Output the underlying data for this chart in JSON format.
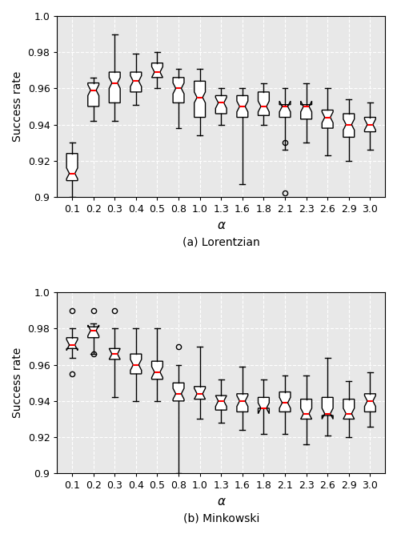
{
  "alpha_labels": [
    "0.1",
    "0.2",
    "0.3",
    "0.4",
    "0.5",
    "0.8",
    "1.0",
    "1.3",
    "1.6",
    "1.8",
    "2.1",
    "2.3",
    "2.6",
    "2.9",
    "3.0"
  ],
  "lorentzian": {
    "whislo": [
      0.9,
      0.942,
      0.942,
      0.951,
      0.96,
      0.938,
      0.934,
      0.94,
      0.907,
      0.94,
      0.926,
      0.93,
      0.923,
      0.92,
      0.926
    ],
    "q1": [
      0.909,
      0.95,
      0.952,
      0.958,
      0.966,
      0.952,
      0.944,
      0.946,
      0.944,
      0.945,
      0.944,
      0.943,
      0.938,
      0.933,
      0.936
    ],
    "med": [
      0.913,
      0.959,
      0.963,
      0.964,
      0.969,
      0.96,
      0.955,
      0.952,
      0.95,
      0.95,
      0.95,
      0.95,
      0.944,
      0.94,
      0.94
    ],
    "q3": [
      0.924,
      0.963,
      0.969,
      0.969,
      0.974,
      0.966,
      0.964,
      0.956,
      0.956,
      0.958,
      0.951,
      0.951,
      0.948,
      0.946,
      0.944
    ],
    "whishi": [
      0.93,
      0.966,
      0.99,
      0.979,
      0.98,
      0.971,
      0.971,
      0.96,
      0.96,
      0.963,
      0.96,
      0.963,
      0.96,
      0.954,
      0.952
    ],
    "cilo": [
      0.91,
      0.956,
      0.96,
      0.961,
      0.966,
      0.957,
      0.952,
      0.949,
      0.947,
      0.947,
      0.947,
      0.947,
      0.941,
      0.937,
      0.937
    ],
    "cihi": [
      0.916,
      0.962,
      0.966,
      0.967,
      0.972,
      0.963,
      0.958,
      0.955,
      0.953,
      0.953,
      0.953,
      0.953,
      0.947,
      0.943,
      0.943
    ],
    "fliers": [
      [],
      [],
      [],
      [],
      [],
      [],
      [],
      [],
      [],
      [],
      [
        0.93,
        0.902
      ],
      [],
      [],
      [],
      []
    ]
  },
  "minkowski": {
    "whislo": [
      0.964,
      0.966,
      0.942,
      0.94,
      0.94,
      0.9,
      0.93,
      0.928,
      0.924,
      0.922,
      0.922,
      0.916,
      0.921,
      0.92,
      0.926
    ],
    "q1": [
      0.969,
      0.975,
      0.963,
      0.955,
      0.952,
      0.94,
      0.941,
      0.935,
      0.934,
      0.936,
      0.934,
      0.93,
      0.932,
      0.93,
      0.934
    ],
    "med": [
      0.971,
      0.979,
      0.966,
      0.96,
      0.956,
      0.944,
      0.944,
      0.94,
      0.94,
      0.936,
      0.939,
      0.933,
      0.933,
      0.933,
      0.94
    ],
    "q3": [
      0.975,
      0.981,
      0.969,
      0.966,
      0.962,
      0.95,
      0.948,
      0.943,
      0.944,
      0.942,
      0.945,
      0.941,
      0.942,
      0.941,
      0.944
    ],
    "whishi": [
      0.98,
      0.983,
      0.98,
      0.98,
      0.98,
      0.96,
      0.97,
      0.952,
      0.959,
      0.952,
      0.954,
      0.954,
      0.964,
      0.951,
      0.956
    ],
    "cilo": [
      0.968,
      0.976,
      0.963,
      0.957,
      0.953,
      0.941,
      0.941,
      0.937,
      0.937,
      0.933,
      0.936,
      0.93,
      0.93,
      0.93,
      0.937
    ],
    "cihi": [
      0.974,
      0.982,
      0.969,
      0.963,
      0.959,
      0.947,
      0.947,
      0.943,
      0.943,
      0.939,
      0.942,
      0.936,
      0.936,
      0.936,
      0.943
    ],
    "fliers": [
      [
        0.955,
        0.99
      ],
      [
        0.966,
        0.99
      ],
      [
        0.99
      ],
      [],
      [],
      [
        0.97
      ],
      [],
      [],
      [],
      [],
      [],
      [],
      [],
      [],
      []
    ]
  },
  "ylim": [
    0.9,
    1.0
  ],
  "yticks": [
    0.9,
    0.92,
    0.94,
    0.96,
    0.98,
    1.0
  ],
  "ylabel": "Success rate",
  "xlabel": "α",
  "title_a": "(a) Lorentzian",
  "title_b": "(b) Minkowski",
  "bg_color": "#e8e8e8",
  "box_color": "white",
  "median_color": "red",
  "whisker_color": "black",
  "flier_color": "black"
}
